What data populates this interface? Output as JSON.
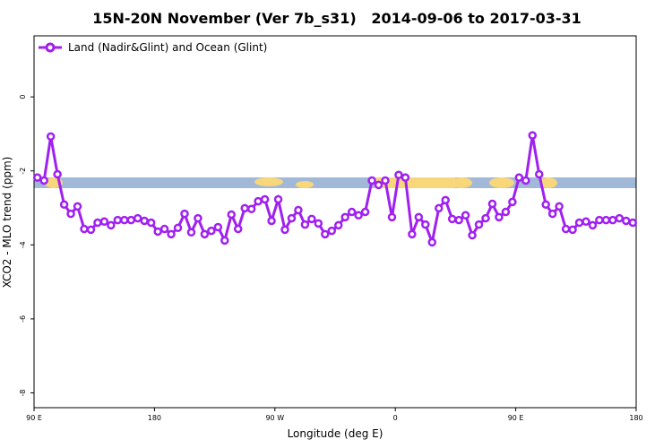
{
  "chart_data": {
    "type": "line",
    "title": "15N-20N November (Ver 7b_s31)   2014-09-06 to 2017-03-31",
    "xlabel": "Longitude (deg E)",
    "ylabel": "XCO2 - MLO trend (ppm)",
    "x": [
      92.5,
      97.5,
      102.5,
      107.5,
      112.5,
      117.5,
      122.5,
      127.5,
      132.5,
      137.5,
      142.5,
      147.5,
      152.5,
      157.5,
      162.5,
      167.5,
      172.5,
      177.5,
      182.5,
      187.5,
      192.5,
      197.5,
      202.5,
      207.5,
      212.5,
      217.5,
      222.5,
      227.5,
      232.5,
      237.5,
      242.5,
      247.5,
      252.5,
      257.5,
      262.5,
      267.5,
      272.5,
      277.5,
      282.5,
      287.5,
      292.5,
      297.5,
      302.5,
      307.5,
      312.5,
      317.5,
      322.5,
      327.5,
      332.5,
      337.5,
      342.5,
      347.5,
      352.5,
      357.5,
      362.5,
      367.5,
      372.5,
      377.5,
      382.5,
      387.5,
      392.5,
      397.5,
      402.5,
      407.5,
      412.5,
      417.5,
      422.5,
      427.5,
      432.5,
      437.5,
      442.5,
      447.5,
      452.5,
      457.5,
      462.5,
      467.5,
      472.5,
      477.5,
      482.5,
      487.5,
      492.5,
      497.5,
      502.5,
      507.5,
      512.5,
      517.5,
      522.5,
      527.5,
      532.5,
      537.5
    ],
    "series": [
      {
        "name": "Land (Nadir&Glint) and Ocean (Glint)",
        "color": "#a020f0",
        "values": [
          -2.18,
          -2.26,
          -1.07,
          -2.09,
          -2.91,
          -3.16,
          -2.96,
          -3.57,
          -3.59,
          -3.4,
          -3.37,
          -3.47,
          -3.33,
          -3.33,
          -3.33,
          -3.28,
          -3.35,
          -3.4,
          -3.64,
          -3.57,
          -3.71,
          -3.54,
          -3.16,
          -3.66,
          -3.28,
          -3.71,
          -3.62,
          -3.52,
          -3.88,
          -3.18,
          -3.57,
          -3.01,
          -3.03,
          -2.82,
          -2.77,
          -3.35,
          -2.77,
          -3.59,
          -3.28,
          -3.06,
          -3.45,
          -3.3,
          -3.42,
          -3.71,
          -3.62,
          -3.47,
          -3.25,
          -3.11,
          -3.2,
          -3.11,
          -2.26,
          -2.38,
          -2.26,
          -3.25,
          -2.11,
          -2.18,
          -3.71,
          -3.25,
          -3.45,
          -3.93,
          -3.01,
          -2.79,
          -3.3,
          -3.33,
          -3.2,
          -3.74,
          -3.45,
          -3.28,
          -2.89,
          -3.25,
          -3.11,
          -2.84,
          -2.18,
          -2.26,
          -1.04,
          -2.09,
          -2.91,
          -3.16,
          -2.96,
          -3.57,
          -3.59,
          -3.4,
          -3.37,
          -3.47,
          -3.33,
          -3.33,
          -3.33,
          -3.28,
          -3.35,
          -3.4
        ]
      }
    ],
    "xlim": [
      90,
      540
    ],
    "xticks": [
      {
        "value": 90,
        "label": "90 E"
      },
      180,
      {
        "value": 270,
        "label": "90 W"
      },
      {
        "value": 360,
        "label": "0"
      },
      {
        "value": 450,
        "label": "90 E"
      },
      {
        "value": 540,
        "label": "180"
      }
    ],
    "ylim": [
      -8.4,
      1.65
    ],
    "yticks": [
      0,
      -2,
      -4,
      -6,
      -8
    ],
    "legend": "top-left"
  }
}
